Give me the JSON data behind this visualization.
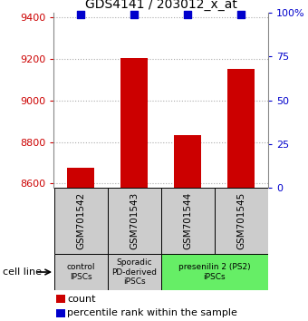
{
  "title": "GDS4141 / 203012_x_at",
  "samples": [
    "GSM701542",
    "GSM701543",
    "GSM701544",
    "GSM701545"
  ],
  "count_values": [
    8675,
    9205,
    8835,
    9150
  ],
  "percentile_values": [
    99,
    99,
    99,
    99
  ],
  "ylim_left": [
    8580,
    9420
  ],
  "ylim_right": [
    0,
    100
  ],
  "yticks_left": [
    8600,
    8800,
    9000,
    9200,
    9400
  ],
  "yticks_right": [
    0,
    25,
    50,
    75,
    100
  ],
  "bar_color": "#cc0000",
  "dot_color": "#0000cc",
  "cell_line_label": "cell line",
  "legend_count_label": "count",
  "legend_percentile_label": "percentile rank within the sample",
  "grid_color": "#aaaaaa",
  "label_color_left": "#cc0000",
  "label_color_right": "#0000cc",
  "bar_width": 0.5,
  "dot_size": 30,
  "sample_box_color": "#cccccc",
  "group_data": [
    {
      "label": "control\nIPSCs",
      "color": "#cccccc",
      "xmin": -0.5,
      "xmax": 0.5
    },
    {
      "label": "Sporadic\nPD-derived\niPSCs",
      "color": "#cccccc",
      "xmin": 0.5,
      "xmax": 1.5
    },
    {
      "label": "presenilin 2 (PS2)\niPSCs",
      "color": "#66ee66",
      "xmin": 1.5,
      "xmax": 3.5
    }
  ]
}
